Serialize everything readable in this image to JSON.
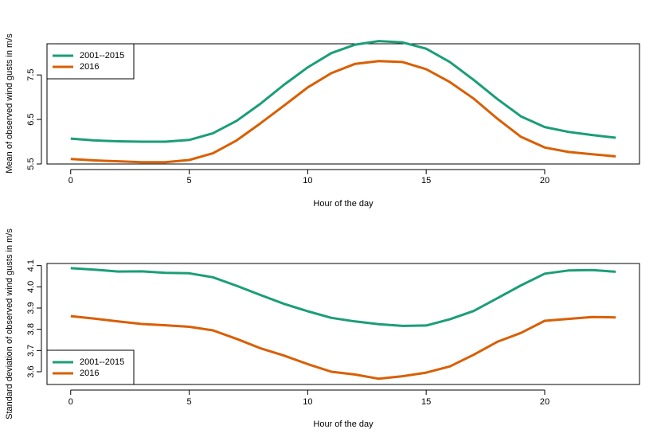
{
  "chart_data": [
    {
      "type": "line",
      "xlabel": "Hour of the day",
      "ylabel": "Mean of observed wind gusts in m/s",
      "xlim": [
        -1,
        24
      ],
      "ylim": [
        5.5,
        8.2
      ],
      "xticks": [
        0,
        5,
        10,
        15,
        20
      ],
      "yticks": [
        5.5,
        6.5,
        7.5
      ],
      "x": [
        0,
        1,
        2,
        3,
        4,
        5,
        6,
        7,
        8,
        9,
        10,
        11,
        12,
        13,
        14,
        15,
        16,
        17,
        18,
        19,
        20,
        21,
        22,
        23
      ],
      "legend": "top-left",
      "series": [
        {
          "name": "2001--2015",
          "color": "#1b9e77",
          "values": [
            6.07,
            6.03,
            6.01,
            6.0,
            6.0,
            6.04,
            6.19,
            6.47,
            6.85,
            7.28,
            7.67,
            7.99,
            8.18,
            8.26,
            8.23,
            8.09,
            7.79,
            7.39,
            6.96,
            6.57,
            6.33,
            6.22,
            6.15,
            6.09
          ]
        },
        {
          "name": "2016",
          "color": "#d95f02",
          "values": [
            5.61,
            5.58,
            5.56,
            5.54,
            5.54,
            5.59,
            5.74,
            6.03,
            6.41,
            6.81,
            7.22,
            7.54,
            7.75,
            7.81,
            7.79,
            7.63,
            7.34,
            6.97,
            6.52,
            6.11,
            5.87,
            5.77,
            5.72,
            5.67
          ]
        }
      ]
    },
    {
      "type": "line",
      "xlabel": "Hour of the day",
      "ylabel": "Standard deviation of observed wind gusts in m/s",
      "xlim": [
        -1,
        24
      ],
      "ylim": [
        3.54,
        4.11
      ],
      "xticks": [
        0,
        5,
        10,
        15,
        20
      ],
      "yticks": [
        3.6,
        3.7,
        3.8,
        3.9,
        4.0,
        4.1
      ],
      "x": [
        0,
        1,
        2,
        3,
        4,
        5,
        6,
        7,
        8,
        9,
        10,
        11,
        12,
        13,
        14,
        15,
        16,
        17,
        18,
        19,
        20,
        21,
        22,
        23
      ],
      "legend": "bottom-left",
      "series": [
        {
          "name": "2001--2015",
          "color": "#1b9e77",
          "values": [
            4.088,
            4.081,
            4.072,
            4.073,
            4.066,
            4.064,
            4.045,
            4.005,
            3.962,
            3.92,
            3.885,
            3.854,
            3.837,
            3.824,
            3.816,
            3.818,
            3.847,
            3.886,
            3.946,
            4.007,
            4.062,
            4.077,
            4.079,
            4.071
          ]
        },
        {
          "name": "2016",
          "color": "#d95f02",
          "values": [
            3.862,
            3.85,
            3.837,
            3.825,
            3.819,
            3.812,
            3.795,
            3.755,
            3.711,
            3.676,
            3.636,
            3.6,
            3.587,
            3.567,
            3.579,
            3.596,
            3.625,
            3.68,
            3.741,
            3.783,
            3.84,
            3.849,
            3.858,
            3.856
          ]
        }
      ]
    }
  ]
}
